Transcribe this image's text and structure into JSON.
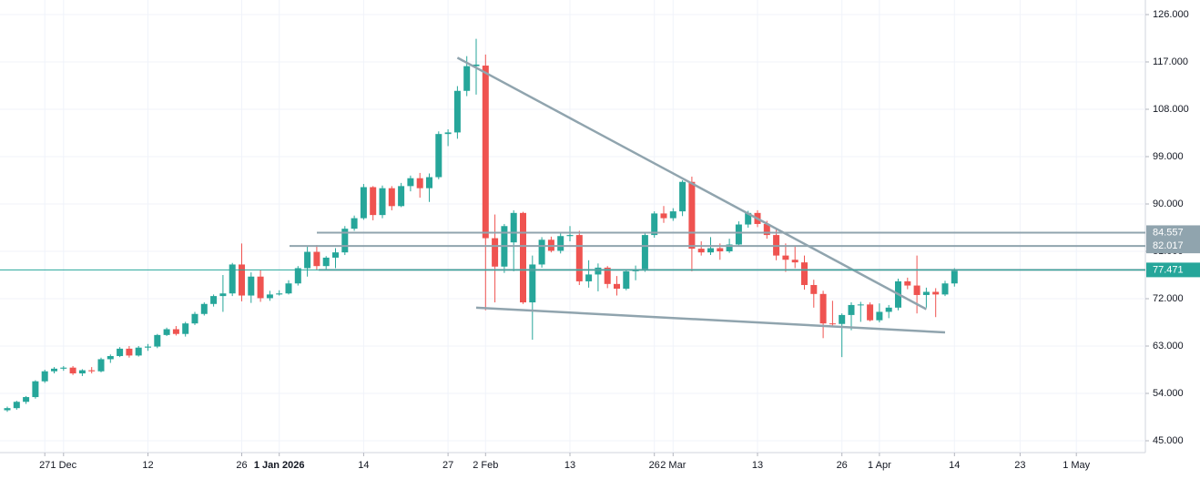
{
  "chart_data": {
    "type": "candlestick",
    "up_color": "#26a69a",
    "down_color": "#ef5350",
    "x": [
      "2025-11-21",
      "2025-11-24",
      "2025-11-25",
      "2025-11-26",
      "2025-11-27",
      "2025-11-28",
      "2025-12-01",
      "2025-12-02",
      "2025-12-03",
      "2025-12-04",
      "2025-12-05",
      "2025-12-08",
      "2025-12-09",
      "2025-12-10",
      "2025-12-11",
      "2025-12-12",
      "2025-12-15",
      "2025-12-16",
      "2025-12-17",
      "2025-12-18",
      "2025-12-19",
      "2025-12-22",
      "2025-12-23",
      "2025-12-24",
      "2025-12-25",
      "2025-12-26",
      "2025-12-29",
      "2025-12-30",
      "2025-12-31",
      "2026-01-01",
      "2026-01-02",
      "2026-01-05",
      "2026-01-06",
      "2026-01-07",
      "2026-01-08",
      "2026-01-09",
      "2026-01-12",
      "2026-01-13",
      "2026-01-14",
      "2026-01-15",
      "2026-01-16",
      "2026-01-19",
      "2026-01-20",
      "2026-01-21",
      "2026-01-22",
      "2026-01-23",
      "2026-01-26",
      "2026-01-27",
      "2026-01-28",
      "2026-01-29",
      "2026-01-30",
      "2026-02-02",
      "2026-02-03",
      "2026-02-04",
      "2026-02-05",
      "2026-02-06",
      "2026-02-09",
      "2026-02-10",
      "2026-02-11",
      "2026-02-12",
      "2026-02-13",
      "2026-02-16",
      "2026-02-17",
      "2026-02-18",
      "2026-02-19",
      "2026-02-20",
      "2026-02-23",
      "2026-02-24",
      "2026-02-25",
      "2026-02-26",
      "2026-02-27",
      "2026-03-02",
      "2026-03-03",
      "2026-03-04",
      "2026-03-05",
      "2026-03-06",
      "2026-03-09",
      "2026-03-10",
      "2026-03-11",
      "2026-03-12",
      "2026-03-13",
      "2026-03-16",
      "2026-03-17",
      "2026-03-18",
      "2026-03-19",
      "2026-03-20",
      "2026-03-23",
      "2026-03-24",
      "2026-03-25",
      "2026-03-26",
      "2026-03-27",
      "2026-03-30",
      "2026-03-31",
      "2026-04-01",
      "2026-04-02",
      "2026-04-06",
      "2026-04-07",
      "2026-04-08",
      "2026-04-09",
      "2026-04-10",
      "2026-04-13",
      "2026-04-14"
    ],
    "open": [
      50.8,
      51.2,
      52.4,
      53.3,
      56.3,
      58.2,
      58.7,
      58.9,
      57.8,
      58.4,
      58.2,
      60.5,
      61.1,
      62.5,
      61.2,
      62.7,
      62.9,
      65.1,
      66.2,
      65.3,
      67.3,
      69.1,
      71.0,
      72.5,
      73.0,
      78.5,
      72.6,
      76.2,
      72.1,
      72.8,
      73.0,
      74.9,
      77.8,
      80.9,
      78.2,
      79.8,
      80.8,
      85.3,
      87.3,
      93.2,
      87.9,
      93.0,
      89.6,
      93.4,
      94.9,
      93.0,
      95.1,
      103.3,
      103.6,
      111.5,
      116.2,
      116.3,
      83.5,
      78.1,
      82.7,
      88.3,
      71.3,
      78.5,
      83.2,
      81.1,
      83.9,
      84.1,
      75.3,
      76.6,
      77.9,
      74.8,
      73.9,
      77.2,
      77.6,
      84.1,
      88.2,
      87.3,
      88.6,
      94.2,
      81.5,
      80.8,
      81.6,
      81.0,
      82.3,
      86.1,
      88.3,
      86.2,
      84.1,
      80.2,
      79.4,
      78.9,
      74.6,
      72.9,
      67.3,
      67.2,
      68.9,
      70.8,
      70.9,
      67.9,
      69.5,
      70.3,
      75.3,
      74.5,
      72.7,
      73.3,
      72.8,
      74.9
    ],
    "high": [
      51.5,
      52.6,
      53.5,
      56.5,
      58.5,
      59.0,
      59.2,
      59.2,
      58.6,
      59.0,
      60.8,
      61.4,
      62.8,
      63.0,
      63.0,
      63.4,
      65.3,
      66.5,
      66.8,
      67.6,
      69.5,
      71.3,
      72.8,
      76.5,
      78.8,
      82.5,
      77.0,
      77.4,
      73.5,
      73.6,
      75.5,
      78.2,
      82.0,
      82.2,
      80.1,
      81.6,
      85.8,
      87.8,
      93.8,
      93.4,
      93.5,
      93.4,
      94.0,
      95.4,
      95.9,
      95.8,
      103.8,
      104.2,
      112.4,
      118.1,
      121.4,
      118.4,
      88.0,
      86.2,
      88.8,
      88.5,
      80.2,
      83.7,
      83.8,
      84.5,
      85.8,
      84.9,
      79.3,
      78.7,
      78.2,
      76.3,
      77.6,
      78.3,
      84.5,
      88.6,
      89.6,
      89.2,
      94.5,
      95.2,
      82.9,
      83.7,
      82.5,
      83.4,
      86.7,
      88.7,
      88.8,
      86.8,
      85.4,
      82.5,
      81.9,
      80.2,
      75.6,
      73.5,
      71.6,
      69.2,
      71.3,
      71.4,
      71.3,
      71.1,
      70.8,
      75.8,
      76.0,
      80.2,
      74.1,
      74.0,
      75.4,
      77.8
    ],
    "low": [
      50.5,
      50.9,
      52.0,
      53.0,
      56.0,
      57.8,
      58.3,
      57.5,
      57.3,
      57.8,
      58.0,
      59.8,
      60.9,
      60.8,
      61.0,
      62.1,
      62.6,
      64.9,
      65.0,
      64.8,
      67.0,
      68.8,
      70.5,
      69.5,
      72.5,
      71.5,
      71.2,
      71.4,
      71.6,
      72.6,
      72.8,
      74.5,
      76.2,
      77.4,
      77.5,
      77.8,
      80.3,
      84.9,
      87.0,
      86.9,
      87.3,
      88.8,
      89.4,
      92.4,
      91.2,
      90.4,
      94.7,
      101.0,
      102.4,
      110.5,
      110.8,
      69.8,
      71.3,
      76.9,
      77.2,
      71.0,
      64.2,
      77.9,
      80.8,
      80.6,
      82.9,
      74.6,
      74.1,
      73.4,
      74.0,
      72.6,
      73.6,
      75.5,
      77.1,
      83.6,
      86.4,
      86.8,
      87.7,
      77.2,
      80.2,
      80.3,
      79.4,
      80.7,
      81.9,
      85.5,
      85.6,
      83.4,
      79.3,
      77.1,
      77.8,
      73.7,
      70.3,
      64.5,
      66.7,
      60.9,
      66.0,
      67.6,
      67.7,
      67.5,
      68.3,
      69.8,
      73.8,
      69.2,
      70.3,
      68.5,
      72.5,
      74.3
    ],
    "close": [
      51.2,
      52.4,
      53.3,
      56.3,
      58.2,
      58.7,
      58.9,
      57.8,
      58.4,
      58.2,
      60.5,
      61.1,
      62.5,
      61.2,
      62.7,
      62.9,
      65.1,
      66.2,
      65.3,
      67.3,
      69.1,
      71.0,
      72.5,
      73.0,
      78.5,
      72.6,
      76.2,
      72.1,
      72.8,
      73.0,
      74.9,
      77.8,
      80.9,
      78.2,
      79.8,
      80.8,
      85.3,
      87.3,
      93.2,
      87.9,
      93.0,
      89.6,
      93.4,
      94.9,
      93.0,
      95.1,
      103.3,
      103.6,
      111.5,
      116.2,
      116.5,
      83.5,
      78.1,
      85.8,
      88.3,
      71.3,
      78.5,
      83.2,
      81.1,
      83.9,
      84.1,
      75.3,
      76.6,
      77.9,
      74.8,
      73.9,
      77.2,
      77.6,
      84.1,
      88.2,
      87.3,
      88.6,
      94.2,
      81.5,
      80.8,
      81.6,
      81.0,
      82.3,
      86.1,
      88.3,
      86.2,
      84.1,
      80.2,
      79.4,
      78.9,
      74.6,
      72.9,
      67.3,
      67.2,
      68.9,
      70.8,
      70.9,
      67.9,
      69.5,
      70.3,
      75.3,
      74.5,
      72.7,
      73.3,
      72.8,
      74.9,
      77.3
    ],
    "ylim": [
      45,
      126
    ],
    "yticks": [
      {
        "value": 45,
        "label": "45.000"
      },
      {
        "value": 54,
        "label": "54.000"
      },
      {
        "value": 63,
        "label": "63.000"
      },
      {
        "value": 72,
        "label": "72.000"
      },
      {
        "value": 81,
        "label": "81.000"
      },
      {
        "value": 90,
        "label": "90.000"
      },
      {
        "value": 99,
        "label": "99.000"
      },
      {
        "value": 108,
        "label": "108.000"
      },
      {
        "value": 117,
        "label": "117.000"
      },
      {
        "value": 126,
        "label": "126.000"
      }
    ],
    "xticks": [
      {
        "value": "2025-11-27",
        "label": "27"
      },
      {
        "value": "2025-12-01",
        "label": "1 Dec"
      },
      {
        "value": "2025-12-12",
        "label": "12"
      },
      {
        "value": "2025-12-26",
        "label": "26"
      },
      {
        "value": "2026-01-01",
        "label": "1 Jan 2026"
      },
      {
        "value": "2026-01-14",
        "label": "14"
      },
      {
        "value": "2026-01-27",
        "label": "27"
      },
      {
        "value": "2026-02-02",
        "label": "2 Feb"
      },
      {
        "value": "2026-02-13",
        "label": "13"
      },
      {
        "value": "2026-02-26",
        "label": "26"
      },
      {
        "value": "2026-03-02",
        "label": "2 Mar"
      },
      {
        "value": "2026-03-13",
        "label": "13"
      },
      {
        "value": "2026-03-26",
        "label": "26"
      },
      {
        "value": "2026-04-01",
        "label": "1 Apr"
      },
      {
        "value": "2026-04-14",
        "label": "14"
      },
      {
        "value": "2026-04-23",
        "label": "23"
      },
      {
        "value": "2026-05-01",
        "label": "1 May"
      }
    ],
    "levels": [
      84.557,
      82.017,
      77.471
    ],
    "trendlines": [
      {
        "x": [
          "2026-01-28",
          "2026-04-09"
        ],
        "y": [
          117.8,
          70.0
        ]
      },
      {
        "x": [
          "2026-01-30",
          "2026-04-13"
        ],
        "y": [
          70.3,
          65.6
        ]
      }
    ],
    "grid": true
  }
}
